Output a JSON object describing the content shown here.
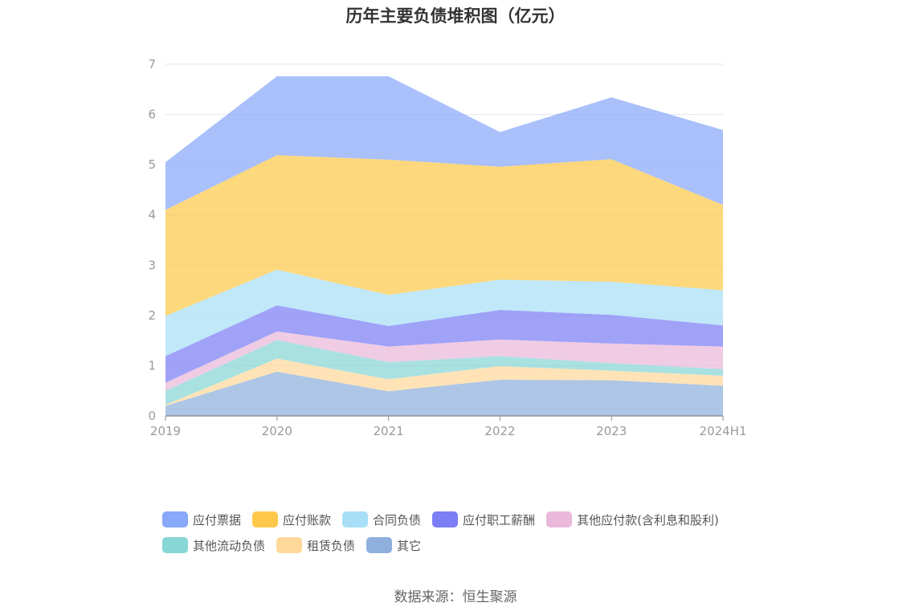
{
  "chart_data": {
    "type": "area",
    "stacked": true,
    "title": "历年主要负债堆积图（亿元）",
    "xlabel": "",
    "ylabel": "",
    "categories": [
      "2019",
      "2020",
      "2021",
      "2022",
      "2023",
      "2024H1"
    ],
    "ylim": [
      0,
      7
    ],
    "yticks": [
      "0",
      "1",
      "2",
      "3",
      "4",
      "5",
      "6",
      "7"
    ],
    "grid": true,
    "legend_position": "bottom",
    "series": [
      {
        "name": "其它",
        "color": "#8fb0dd",
        "values": [
          0.2,
          0.88,
          0.49,
          0.72,
          0.71,
          0.6
        ]
      },
      {
        "name": "租赁负债",
        "color": "#ffd89a",
        "values": [
          0.02,
          0.26,
          0.24,
          0.27,
          0.19,
          0.2
        ]
      },
      {
        "name": "其他流动负债",
        "color": "#88d6d6",
        "values": [
          0.28,
          0.37,
          0.34,
          0.2,
          0.15,
          0.13
        ]
      },
      {
        "name": "其他应付款(含利息和股利)",
        "color": "#eab8da",
        "values": [
          0.16,
          0.17,
          0.31,
          0.33,
          0.39,
          0.45
        ]
      },
      {
        "name": "应付职工薪酬",
        "color": "#7b7ef5",
        "values": [
          0.53,
          0.52,
          0.41,
          0.59,
          0.57,
          0.42
        ]
      },
      {
        "name": "合同负债",
        "color": "#a8dff7",
        "values": [
          0.8,
          0.71,
          0.62,
          0.6,
          0.66,
          0.7
        ]
      },
      {
        "name": "应付账款",
        "color": "#fec94a",
        "values": [
          2.11,
          2.28,
          2.69,
          2.25,
          2.44,
          1.7
        ]
      },
      {
        "name": "应付票据",
        "color": "#88a8fa",
        "values": [
          0.95,
          1.57,
          1.66,
          0.69,
          1.23,
          1.49
        ]
      }
    ]
  },
  "legend": {
    "row1": [
      {
        "label": "应付票据",
        "color": "#88a8fa"
      },
      {
        "label": "应付账款",
        "color": "#fec94a"
      },
      {
        "label": "合同负债",
        "color": "#a8dff7"
      },
      {
        "label": "应付职工薪酬",
        "color": "#7b7ef5"
      },
      {
        "label": "其他应付款(含利息和股利)",
        "color": "#eab8da"
      }
    ],
    "row2": [
      {
        "label": "其他流动负债",
        "color": "#88d6d6"
      },
      {
        "label": "租赁负债",
        "color": "#ffd89a"
      },
      {
        "label": "其它",
        "color": "#8fb0dd"
      }
    ]
  },
  "source": "数据来源：恒生聚源"
}
